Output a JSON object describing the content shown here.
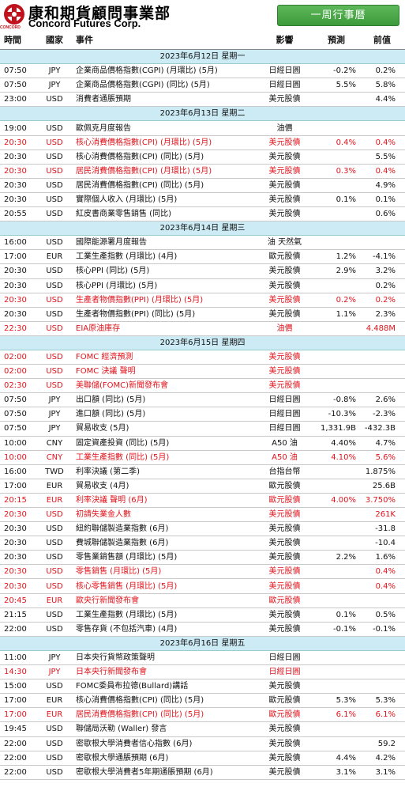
{
  "header": {
    "logo_cn": "康和期貨顧問事業部",
    "logo_en": "Concord Futures Corp.",
    "logo_small": "CONCORD",
    "weekly_button": "一周行事曆"
  },
  "columns": {
    "time": "時間",
    "country": "國家",
    "event": "事件",
    "impact": "影響",
    "forecast": "預測",
    "previous": "前值"
  },
  "colors": {
    "highlight": "#e0141c",
    "date_band": "#ccebf5",
    "button": "#3d9a3b"
  },
  "days": [
    {
      "date": "2023年6月12日 星期一",
      "events": [
        {
          "time": "07:50",
          "country": "JPY",
          "event": "企業商品價格指數(CGPI) (月環比) (5月)",
          "impact": "日經日圓",
          "forecast": "-0.2%",
          "previous": "0.2%",
          "highlight": false
        },
        {
          "time": "07:50",
          "country": "JPY",
          "event": "企業商品價格指數(CGPI) (同比) (5月)",
          "impact": "日經日圓",
          "forecast": "5.5%",
          "previous": "5.8%",
          "highlight": false
        },
        {
          "time": "23:00",
          "country": "USD",
          "event": "消費者通脹預期",
          "impact": "美元股債",
          "forecast": "",
          "previous": "4.4%",
          "highlight": false
        }
      ]
    },
    {
      "date": "2023年6月13日 星期二",
      "events": [
        {
          "time": "19:00",
          "country": "USD",
          "event": "歐佩克月度報告",
          "impact": "油價",
          "forecast": "",
          "previous": "",
          "highlight": false
        },
        {
          "time": "20:30",
          "country": "USD",
          "event": "核心消費價格指數(CPI) (月環比) (5月)",
          "impact": "美元股債",
          "forecast": "0.4%",
          "previous": "0.4%",
          "highlight": true
        },
        {
          "time": "20:30",
          "country": "USD",
          "event": "核心消費價格指數(CPI) (同比) (5月)",
          "impact": "美元股債",
          "forecast": "",
          "previous": "5.5%",
          "highlight": false
        },
        {
          "time": "20:30",
          "country": "USD",
          "event": "居民消費價格指數(CPI) (月環比) (5月)",
          "impact": "美元股債",
          "forecast": "0.3%",
          "previous": "0.4%",
          "highlight": true
        },
        {
          "time": "20:30",
          "country": "USD",
          "event": "居民消費價格指數(CPI) (同比) (5月)",
          "impact": "美元股債",
          "forecast": "",
          "previous": "4.9%",
          "highlight": false
        },
        {
          "time": "20:30",
          "country": "USD",
          "event": "實際個人收入 (月環比) (5月)",
          "impact": "美元股債",
          "forecast": "0.1%",
          "previous": "0.1%",
          "highlight": false
        },
        {
          "time": "20:55",
          "country": "USD",
          "event": "紅皮書商業零售銷售 (同比)",
          "impact": "美元股債",
          "forecast": "",
          "previous": "0.6%",
          "highlight": false
        }
      ]
    },
    {
      "date": "2023年6月14日 星期三",
      "events": [
        {
          "time": "16:00",
          "country": "USD",
          "event": "國際能源署月度報告",
          "impact": "油 天然氣",
          "forecast": "",
          "previous": "",
          "highlight": false
        },
        {
          "time": "17:00",
          "country": "EUR",
          "event": "工業生產指數 (月環比) (4月)",
          "impact": "歐元股債",
          "forecast": "1.2%",
          "previous": "-4.1%",
          "highlight": false
        },
        {
          "time": "20:30",
          "country": "USD",
          "event": "核心PPI (同比) (5月)",
          "impact": "美元股債",
          "forecast": "2.9%",
          "previous": "3.2%",
          "highlight": false
        },
        {
          "time": "20:30",
          "country": "USD",
          "event": "核心PPI (月環比) (5月)",
          "impact": "美元股債",
          "forecast": "",
          "previous": "0.2%",
          "highlight": false
        },
        {
          "time": "20:30",
          "country": "USD",
          "event": "生產者物價指數(PPI) (月環比) (5月)",
          "impact": "美元股債",
          "forecast": "0.2%",
          "previous": "0.2%",
          "highlight": true
        },
        {
          "time": "20:30",
          "country": "USD",
          "event": "生產者物價指數(PPI) (同比) (5月)",
          "impact": "美元股債",
          "forecast": "1.1%",
          "previous": "2.3%",
          "highlight": false
        },
        {
          "time": "22:30",
          "country": "USD",
          "event": "EIA原油庫存",
          "impact": "油價",
          "forecast": "",
          "previous": "4.488M",
          "highlight": true
        }
      ]
    },
    {
      "date": "2023年6月15日 星期四",
      "events": [
        {
          "time": "02:00",
          "country": "USD",
          "event": "FOMC 經濟預測",
          "impact": "美元股債",
          "forecast": "",
          "previous": "",
          "highlight": true
        },
        {
          "time": "02:00",
          "country": "USD",
          "event": "FOMC 決議 聲明",
          "impact": "美元股債",
          "forecast": "",
          "previous": "",
          "highlight": true
        },
        {
          "time": "02:30",
          "country": "USD",
          "event": "美聯儲(FOMC)新聞發布會",
          "impact": "美元股債",
          "forecast": "",
          "previous": "",
          "highlight": true
        },
        {
          "time": "07:50",
          "country": "JPY",
          "event": "出口額 (同比) (5月)",
          "impact": "日經日圓",
          "forecast": "-0.8%",
          "previous": "2.6%",
          "highlight": false
        },
        {
          "time": "07:50",
          "country": "JPY",
          "event": "進口額 (同比) (5月)",
          "impact": "日經日圓",
          "forecast": "-10.3%",
          "previous": "-2.3%",
          "highlight": false
        },
        {
          "time": "07:50",
          "country": "JPY",
          "event": "貿易收支 (5月)",
          "impact": "日經日圓",
          "forecast": "1,331.9B",
          "previous": "-432.3B",
          "highlight": false
        },
        {
          "time": "10:00",
          "country": "CNY",
          "event": "固定資產投資 (同比) (5月)",
          "impact": "A50 油",
          "forecast": "4.40%",
          "previous": "4.7%",
          "highlight": false
        },
        {
          "time": "10:00",
          "country": "CNY",
          "event": "工業生產指數 (同比) (5月)",
          "impact": "A50 油",
          "forecast": "4.10%",
          "previous": "5.6%",
          "highlight": true
        },
        {
          "time": "16:00",
          "country": "TWD",
          "event": "利率決議 (第二季)",
          "impact": "台指台幣",
          "forecast": "",
          "previous": "1.875%",
          "highlight": false
        },
        {
          "time": "17:00",
          "country": "EUR",
          "event": "貿易收支 (4月)",
          "impact": "歐元股債",
          "forecast": "",
          "previous": "25.6B",
          "highlight": false
        },
        {
          "time": "20:15",
          "country": "EUR",
          "event": "利率決議 聲明 (6月)",
          "impact": "歐元股債",
          "forecast": "4.00%",
          "previous": "3.750%",
          "highlight": true
        },
        {
          "time": "20:30",
          "country": "USD",
          "event": "初請失業金人數",
          "impact": "美元股債",
          "forecast": "",
          "previous": "261K",
          "highlight": true
        },
        {
          "time": "20:30",
          "country": "USD",
          "event": "紐約聯儲製造業指數 (6月)",
          "impact": "美元股債",
          "forecast": "",
          "previous": "-31.8",
          "highlight": false
        },
        {
          "time": "20:30",
          "country": "USD",
          "event": "費城聯儲製造業指數 (6月)",
          "impact": "美元股債",
          "forecast": "",
          "previous": "-10.4",
          "highlight": false
        },
        {
          "time": "20:30",
          "country": "USD",
          "event": "零售業銷售額 (月環比) (5月)",
          "impact": "美元股債",
          "forecast": "2.2%",
          "previous": "1.6%",
          "highlight": false
        },
        {
          "time": "20:30",
          "country": "USD",
          "event": "零售銷售 (月環比) (5月)",
          "impact": "美元股債",
          "forecast": "",
          "previous": "0.4%",
          "highlight": true
        },
        {
          "time": "20:30",
          "country": "USD",
          "event": "核心零售銷售 (月環比) (5月)",
          "impact": "美元股債",
          "forecast": "",
          "previous": "0.4%",
          "highlight": true
        },
        {
          "time": "20:45",
          "country": "EUR",
          "event": "歐央行新聞發布會",
          "impact": "歐元股債",
          "forecast": "",
          "previous": "",
          "highlight": true
        },
        {
          "time": "21:15",
          "country": "USD",
          "event": "工業生產指數 (月環比) (5月)",
          "impact": "美元股債",
          "forecast": "0.1%",
          "previous": "0.5%",
          "highlight": false
        },
        {
          "time": "22:00",
          "country": "USD",
          "event": "零售存貨 (不包括汽車) (4月)",
          "impact": "美元股債",
          "forecast": "-0.1%",
          "previous": "-0.1%",
          "highlight": false
        }
      ]
    },
    {
      "date": "2023年6月16日 星期五",
      "events": [
        {
          "time": "11:00",
          "country": "JPY",
          "event": "日本央行貨幣政策聲明",
          "impact": "日經日圓",
          "forecast": "",
          "previous": "",
          "highlight": false
        },
        {
          "time": "14:30",
          "country": "JPY",
          "event": "日本央行新聞發布會",
          "impact": "日經日圓",
          "forecast": "",
          "previous": "",
          "highlight": true
        },
        {
          "time": "15:00",
          "country": "USD",
          "event": "FOMC委員布拉德(Bullard)講話",
          "impact": "美元股債",
          "forecast": "",
          "previous": "",
          "highlight": false
        },
        {
          "time": "17:00",
          "country": "EUR",
          "event": "核心消費價格指數(CPI) (同比) (5月)",
          "impact": "歐元股債",
          "forecast": "5.3%",
          "previous": "5.3%",
          "highlight": false
        },
        {
          "time": "17:00",
          "country": "EUR",
          "event": "居民消費價格指數(CPI) (同比) (5月)",
          "impact": "歐元股債",
          "forecast": "6.1%",
          "previous": "6.1%",
          "highlight": true
        },
        {
          "time": "19:45",
          "country": "USD",
          "event": "聯儲局沃勒 (Waller) 發言",
          "impact": "美元股債",
          "forecast": "",
          "previous": "",
          "highlight": false
        },
        {
          "time": "22:00",
          "country": "USD",
          "event": "密歇根大學消費者信心指數 (6月)",
          "impact": "美元股債",
          "forecast": "",
          "previous": "59.2",
          "highlight": false
        },
        {
          "time": "22:00",
          "country": "USD",
          "event": "密歇根大學通脹預期 (6月)",
          "impact": "美元股債",
          "forecast": "4.4%",
          "previous": "4.2%",
          "highlight": false
        },
        {
          "time": "22:00",
          "country": "USD",
          "event": "密歇根大學消費者5年期通脹預期 (6月)",
          "impact": "美元股債",
          "forecast": "3.1%",
          "previous": "3.1%",
          "highlight": false
        }
      ]
    }
  ]
}
